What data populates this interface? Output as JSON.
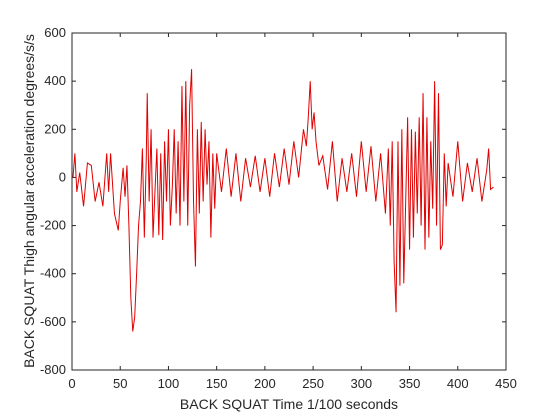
{
  "chart_data": {
    "type": "line",
    "xlabel": "BACK SQUAT Time 1/100 seconds",
    "ylabel": "BACK SQUAT Thigh angular acceleration degrees/s/s",
    "color": "#e00000",
    "xlim": [
      0,
      450
    ],
    "xticks": [
      0,
      50,
      100,
      150,
      200,
      250,
      300,
      350,
      400,
      450
    ],
    "ylim": [
      -800,
      600
    ],
    "yticks": [
      -800,
      -600,
      -400,
      -200,
      0,
      200,
      400,
      600
    ],
    "x": [
      1,
      3,
      5,
      8,
      12,
      16,
      20,
      24,
      28,
      32,
      36,
      38,
      40,
      44,
      48,
      50,
      53,
      55,
      57,
      59,
      61,
      63,
      65,
      67,
      69,
      71,
      73,
      75,
      77,
      78,
      80,
      82,
      84,
      86,
      88,
      90,
      92,
      94,
      96,
      98,
      100,
      102,
      104,
      106,
      108,
      110,
      112,
      114,
      116,
      118,
      120,
      122,
      124,
      126,
      128,
      130,
      132,
      134,
      136,
      138,
      140,
      142,
      144,
      146,
      148,
      150,
      155,
      160,
      165,
      170,
      175,
      180,
      185,
      190,
      195,
      200,
      205,
      210,
      215,
      220,
      225,
      230,
      235,
      240,
      243,
      245,
      247,
      249,
      251,
      253,
      256,
      260,
      265,
      270,
      275,
      280,
      285,
      290,
      295,
      300,
      305,
      310,
      315,
      320,
      325,
      328,
      330,
      332,
      334,
      336,
      338,
      340,
      342,
      344,
      346,
      348,
      350,
      352,
      354,
      356,
      358,
      360,
      362,
      364,
      366,
      368,
      370,
      372,
      374,
      376,
      378,
      380,
      382,
      384,
      386,
      388,
      390,
      395,
      400,
      405,
      410,
      415,
      420,
      425,
      430,
      432,
      434,
      437
    ],
    "values": [
      0,
      100,
      -60,
      20,
      -120,
      60,
      50,
      -100,
      -20,
      -120,
      100,
      -60,
      100,
      -150,
      -220,
      -100,
      40,
      -80,
      50,
      -200,
      -500,
      -640,
      -580,
      -400,
      -200,
      -100,
      120,
      -250,
      80,
      350,
      -100,
      200,
      -250,
      -60,
      120,
      -240,
      100,
      -260,
      150,
      -100,
      200,
      -200,
      -40,
      200,
      -150,
      150,
      -200,
      380,
      -100,
      400,
      -200,
      300,
      450,
      -100,
      -370,
      200,
      -150,
      230,
      -100,
      200,
      -30,
      150,
      -250,
      100,
      -130,
      100,
      -60,
      120,
      -80,
      100,
      -100,
      80,
      -40,
      90,
      -60,
      80,
      -80,
      100,
      -40,
      120,
      -30,
      150,
      0,
      200,
      130,
      250,
      400,
      200,
      270,
      150,
      50,
      90,
      -50,
      150,
      -100,
      80,
      -60,
      100,
      -80,
      150,
      -60,
      130,
      -100,
      100,
      -150,
      120,
      -200,
      150,
      -350,
      -560,
      150,
      -450,
      200,
      -440,
      -100,
      250,
      -300,
      200,
      -250,
      190,
      -150,
      250,
      -200,
      350,
      -300,
      250,
      -250,
      150,
      -130,
      400,
      -200,
      350,
      -300,
      -280,
      100,
      -120,
      60,
      -80,
      150,
      -100,
      60,
      -60,
      80,
      -100,
      30,
      120,
      -50,
      -40
    ],
    "grid": false
  }
}
